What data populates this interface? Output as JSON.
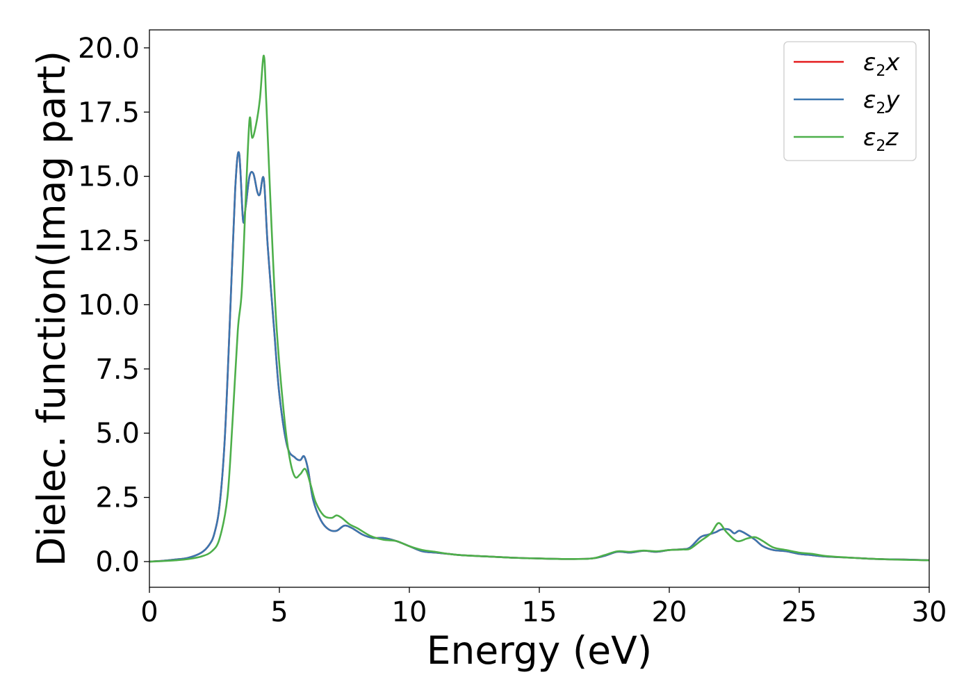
{
  "chart_data": {
    "type": "line",
    "title": "",
    "xlabel": "Energy (eV)",
    "ylabel": "Dielec. function(Imag part)",
    "xlim": [
      0,
      30
    ],
    "ylim": [
      -1.0,
      20.7
    ],
    "xticks": [
      "0",
      "5",
      "10",
      "15",
      "20",
      "25",
      "30"
    ],
    "yticks": [
      "0.0",
      "2.5",
      "5.0",
      "7.5",
      "10.0",
      "12.5",
      "15.0",
      "17.5",
      "20.0"
    ],
    "grid": false,
    "legend": "top-right",
    "series": [
      {
        "name": "ε2x",
        "legend_sym": "ε",
        "legend_sub": "2",
        "legend_var": "x",
        "color": "#e41a1c",
        "x": [
          0,
          0.5,
          1.0,
          1.5,
          2.0,
          2.3,
          2.5,
          2.7,
          2.9,
          3.1,
          3.3,
          3.45,
          3.6,
          3.7,
          3.85,
          4.0,
          4.15,
          4.25,
          4.4,
          4.55,
          4.8,
          5.0,
          5.3,
          5.6,
          5.8,
          5.95,
          6.1,
          6.3,
          6.6,
          6.9,
          7.2,
          7.5,
          7.8,
          8.2,
          8.6,
          9.0,
          9.5,
          10.0,
          10.5,
          11.0,
          11.5,
          12.0,
          13.0,
          14.0,
          15.0,
          16.0,
          17.0,
          17.5,
          18.0,
          18.5,
          19.0,
          19.5,
          20.0,
          20.5,
          20.8,
          21.2,
          21.5,
          21.8,
          22.0,
          22.3,
          22.5,
          22.7,
          23.0,
          23.3,
          23.6,
          24.0,
          24.5,
          25.0,
          25.5,
          26.0,
          27.0,
          28.0,
          29.0,
          30.0
        ],
        "values": [
          0.0,
          0.03,
          0.08,
          0.15,
          0.35,
          0.65,
          1.1,
          2.2,
          4.8,
          9.5,
          14.5,
          15.9,
          13.3,
          13.8,
          15.0,
          15.1,
          14.4,
          14.3,
          14.9,
          12.3,
          9.0,
          6.5,
          4.5,
          4.05,
          3.95,
          4.1,
          3.6,
          2.4,
          1.6,
          1.25,
          1.2,
          1.4,
          1.3,
          1.05,
          0.92,
          0.92,
          0.8,
          0.6,
          0.4,
          0.35,
          0.3,
          0.25,
          0.2,
          0.15,
          0.12,
          0.1,
          0.12,
          0.22,
          0.38,
          0.35,
          0.42,
          0.38,
          0.45,
          0.48,
          0.55,
          0.95,
          1.05,
          1.15,
          1.25,
          1.25,
          1.1,
          1.2,
          1.05,
          0.85,
          0.6,
          0.45,
          0.4,
          0.3,
          0.25,
          0.2,
          0.15,
          0.1,
          0.08,
          0.05
        ]
      },
      {
        "name": "ε2y",
        "legend_sym": "ε",
        "legend_sub": "2",
        "legend_var": "y",
        "color": "#3a76af",
        "x": [
          0,
          0.5,
          1.0,
          1.5,
          2.0,
          2.3,
          2.5,
          2.7,
          2.9,
          3.1,
          3.3,
          3.45,
          3.6,
          3.7,
          3.85,
          4.0,
          4.15,
          4.25,
          4.4,
          4.55,
          4.8,
          5.0,
          5.3,
          5.6,
          5.8,
          5.95,
          6.1,
          6.3,
          6.6,
          6.9,
          7.2,
          7.5,
          7.8,
          8.2,
          8.6,
          9.0,
          9.5,
          10.0,
          10.5,
          11.0,
          11.5,
          12.0,
          13.0,
          14.0,
          15.0,
          16.0,
          17.0,
          17.5,
          18.0,
          18.5,
          19.0,
          19.5,
          20.0,
          20.5,
          20.8,
          21.2,
          21.5,
          21.8,
          22.0,
          22.3,
          22.5,
          22.7,
          23.0,
          23.3,
          23.6,
          24.0,
          24.5,
          25.0,
          25.5,
          26.0,
          27.0,
          28.0,
          29.0,
          30.0
        ],
        "values": [
          0.0,
          0.03,
          0.08,
          0.15,
          0.35,
          0.65,
          1.1,
          2.2,
          4.8,
          9.5,
          14.5,
          15.9,
          13.3,
          13.8,
          15.0,
          15.1,
          14.4,
          14.3,
          14.9,
          12.3,
          9.0,
          6.5,
          4.5,
          4.05,
          3.95,
          4.1,
          3.6,
          2.4,
          1.6,
          1.25,
          1.2,
          1.4,
          1.3,
          1.05,
          0.92,
          0.92,
          0.8,
          0.6,
          0.4,
          0.35,
          0.3,
          0.25,
          0.2,
          0.15,
          0.12,
          0.1,
          0.12,
          0.22,
          0.38,
          0.35,
          0.42,
          0.38,
          0.45,
          0.48,
          0.55,
          0.95,
          1.05,
          1.15,
          1.25,
          1.25,
          1.1,
          1.2,
          1.05,
          0.85,
          0.6,
          0.45,
          0.4,
          0.3,
          0.25,
          0.2,
          0.15,
          0.1,
          0.08,
          0.05
        ]
      },
      {
        "name": "ε2z",
        "legend_sym": "ε",
        "legend_sub": "2",
        "legend_var": "z",
        "color": "#4daf4a",
        "x": [
          0,
          0.5,
          1.0,
          1.5,
          2.0,
          2.4,
          2.7,
          3.0,
          3.2,
          3.4,
          3.55,
          3.7,
          3.85,
          3.95,
          4.1,
          4.25,
          4.4,
          4.5,
          4.7,
          4.9,
          5.2,
          5.4,
          5.6,
          5.8,
          6.0,
          6.2,
          6.4,
          6.7,
          7.0,
          7.2,
          7.4,
          7.7,
          8.0,
          8.5,
          9.0,
          9.5,
          10.0,
          10.5,
          11.0,
          11.5,
          12.0,
          13.0,
          14.0,
          15.0,
          16.0,
          17.0,
          17.5,
          18.0,
          18.5,
          19.0,
          19.5,
          20.0,
          20.5,
          20.8,
          21.2,
          21.6,
          21.9,
          22.2,
          22.6,
          23.0,
          23.3,
          23.6,
          24.0,
          24.5,
          25.0,
          25.5,
          26.0,
          27.0,
          28.0,
          29.0,
          30.0
        ],
        "values": [
          0.0,
          0.02,
          0.05,
          0.1,
          0.2,
          0.4,
          0.9,
          2.5,
          5.5,
          9.0,
          10.5,
          14.0,
          17.2,
          16.5,
          17.0,
          18.0,
          19.7,
          17.8,
          13.0,
          9.0,
          5.5,
          4.0,
          3.3,
          3.4,
          3.6,
          3.0,
          2.3,
          1.8,
          1.7,
          1.8,
          1.7,
          1.45,
          1.3,
          1.0,
          0.85,
          0.8,
          0.6,
          0.45,
          0.38,
          0.3,
          0.25,
          0.2,
          0.15,
          0.12,
          0.1,
          0.12,
          0.25,
          0.4,
          0.38,
          0.43,
          0.4,
          0.45,
          0.47,
          0.5,
          0.8,
          1.1,
          1.5,
          1.15,
          0.8,
          0.9,
          0.95,
          0.8,
          0.55,
          0.45,
          0.35,
          0.3,
          0.22,
          0.15,
          0.1,
          0.07,
          0.05
        ]
      }
    ]
  }
}
